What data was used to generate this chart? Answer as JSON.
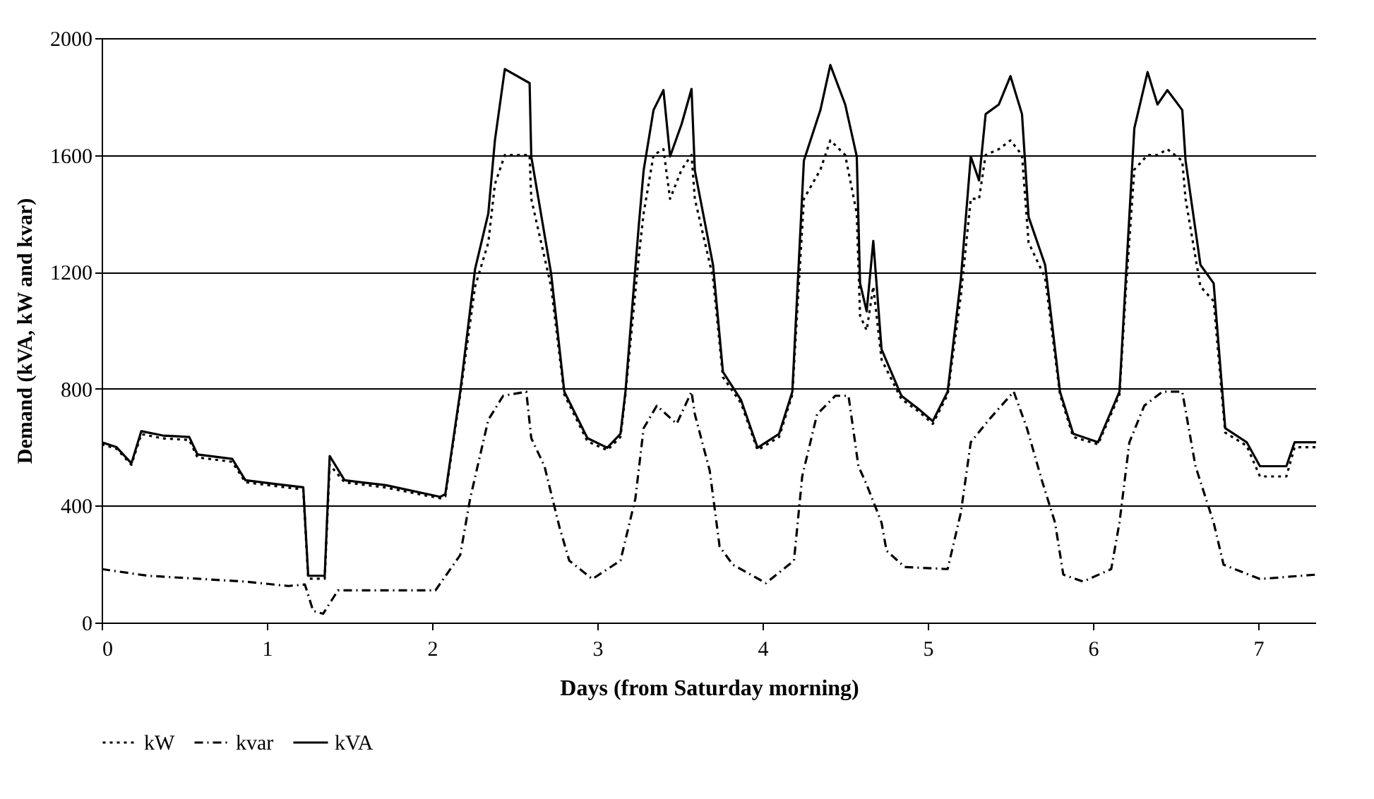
{
  "chart_data": {
    "type": "line",
    "xlabel": "Days (from Saturday morning)",
    "ylabel": "Demand (kVA, kW and kvar)",
    "xlim": [
      0,
      7.35
    ],
    "ylim": [
      0,
      2000
    ],
    "xticks": [
      0,
      1,
      2,
      3,
      4,
      5,
      6,
      7
    ],
    "yticks": [
      0,
      400,
      800,
      1200,
      1600,
      2000
    ],
    "grid": "y",
    "legend": "bottom",
    "series": [
      {
        "name": "kW",
        "color": "#000000",
        "line_style": "dotted",
        "x": [
          0,
          0.09,
          0.18,
          0.24,
          0.37,
          0.53,
          0.58,
          0.79,
          0.87,
          1.04,
          1.22,
          1.25,
          1.35,
          1.38,
          1.47,
          1.72,
          2.05,
          2.08,
          2.17,
          2.26,
          2.34,
          2.38,
          2.44,
          2.59,
          2.6,
          2.72,
          2.8,
          2.94,
          3.06,
          3.14,
          3.17,
          3.25,
          3.28,
          3.34,
          3.4,
          3.44,
          3.51,
          3.57,
          3.59,
          3.7,
          3.76,
          3.87,
          3.97,
          4.1,
          4.18,
          4.25,
          4.35,
          4.41,
          4.5,
          4.57,
          4.59,
          4.63,
          4.67,
          4.72,
          4.84,
          4.95,
          5.03,
          5.12,
          5.2,
          5.26,
          5.31,
          5.35,
          5.43,
          5.5,
          5.57,
          5.61,
          5.71,
          5.8,
          5.88,
          6.03,
          6.16,
          6.2,
          6.25,
          6.33,
          6.39,
          6.45,
          6.54,
          6.56,
          6.65,
          6.73,
          6.8,
          6.93,
          7.01,
          7.17,
          7.22,
          7.35
        ],
        "values": [
          610,
          595,
          540,
          645,
          630,
          625,
          565,
          550,
          480,
          468,
          455,
          150,
          150,
          540,
          480,
          462,
          425,
          432,
          780,
          1150,
          1300,
          1500,
          1600,
          1600,
          1450,
          1150,
          780,
          620,
          590,
          635,
          780,
          1250,
          1400,
          1600,
          1620,
          1450,
          1550,
          1600,
          1450,
          1180,
          840,
          750,
          590,
          635,
          780,
          1450,
          1550,
          1650,
          1600,
          1400,
          1050,
          1000,
          1150,
          900,
          765,
          720,
          680,
          780,
          1120,
          1450,
          1450,
          1600,
          1620,
          1650,
          1600,
          1300,
          1180,
          780,
          635,
          610,
          780,
          1150,
          1550,
          1600,
          1600,
          1620,
          1580,
          1450,
          1150,
          1100,
          650,
          605,
          500,
          500,
          600,
          600
        ]
      },
      {
        "name": "kvar",
        "color": "#000000",
        "line_style": "dashed",
        "x": [
          0,
          0.28,
          0.58,
          0.87,
          1.13,
          1.23,
          1.28,
          1.34,
          1.43,
          2.02,
          2.17,
          2.23,
          2.34,
          2.43,
          2.57,
          2.6,
          2.68,
          2.77,
          2.83,
          2.97,
          3.14,
          3.23,
          3.28,
          3.36,
          3.48,
          3.57,
          3.59,
          3.68,
          3.74,
          3.82,
          4.02,
          4.19,
          4.24,
          4.33,
          4.44,
          4.52,
          4.58,
          4.63,
          4.72,
          4.75,
          4.86,
          5.12,
          5.2,
          5.26,
          5.37,
          5.52,
          5.6,
          5.69,
          5.77,
          5.82,
          5.94,
          6.11,
          6.16,
          6.22,
          6.31,
          6.42,
          6.54,
          6.62,
          6.73,
          6.79,
          7.01,
          7.35
        ],
        "values": [
          183,
          160,
          150,
          140,
          125,
          130,
          40,
          30,
          110,
          110,
          231,
          424,
          694,
          776,
          790,
          631,
          535,
          328,
          212,
          149,
          212,
          424,
          665,
          742,
          680,
          790,
          713,
          520,
          260,
          198,
          135,
          212,
          501,
          713,
          776,
          776,
          535,
          472,
          342,
          246,
          190,
          183,
          376,
          617,
          694,
          790,
          665,
          487,
          342,
          164,
          140,
          183,
          342,
          617,
          742,
          790,
          790,
          535,
          342,
          198,
          149,
          164
        ]
      },
      {
        "name": "kVA",
        "color": "#000000",
        "line_style": "solid",
        "x": [
          0,
          0.09,
          0.18,
          0.24,
          0.37,
          0.53,
          0.58,
          0.79,
          0.87,
          1.04,
          1.22,
          1.25,
          1.35,
          1.38,
          1.47,
          1.72,
          2.05,
          2.08,
          2.17,
          2.26,
          2.34,
          2.38,
          2.44,
          2.59,
          2.6,
          2.72,
          2.8,
          2.94,
          3.06,
          3.14,
          3.17,
          3.25,
          3.28,
          3.34,
          3.4,
          3.44,
          3.51,
          3.57,
          3.59,
          3.7,
          3.76,
          3.87,
          3.97,
          4.1,
          4.18,
          4.25,
          4.35,
          4.41,
          4.5,
          4.57,
          4.59,
          4.63,
          4.67,
          4.72,
          4.84,
          4.95,
          5.03,
          5.12,
          5.2,
          5.26,
          5.31,
          5.35,
          5.43,
          5.5,
          5.57,
          5.61,
          5.71,
          5.8,
          5.88,
          6.03,
          6.16,
          6.2,
          6.25,
          6.33,
          6.39,
          6.45,
          6.54,
          6.56,
          6.65,
          6.73,
          6.8,
          6.93,
          7.01,
          7.17,
          7.22,
          7.35
        ],
        "values": [
          617,
          600,
          545,
          655,
          640,
          635,
          575,
          560,
          487,
          475,
          463,
          160,
          160,
          570,
          487,
          470,
          430,
          440,
          790,
          1210,
          1400,
          1650,
          1894,
          1846,
          1595,
          1195,
          790,
          631,
          598,
          646,
          790,
          1354,
          1547,
          1754,
          1822,
          1595,
          1706,
          1826,
          1547,
          1224,
          858,
          761,
          598,
          646,
          790,
          1581,
          1754,
          1908,
          1773,
          1595,
          1161,
          1065,
          1306,
          935,
          776,
          728,
          689,
          790,
          1176,
          1595,
          1513,
          1740,
          1773,
          1870,
          1740,
          1388,
          1224,
          790,
          646,
          617,
          790,
          1195,
          1692,
          1884,
          1773,
          1822,
          1754,
          1581,
          1224,
          1161,
          665,
          617,
          535,
          535,
          617,
          617
        ]
      }
    ]
  }
}
